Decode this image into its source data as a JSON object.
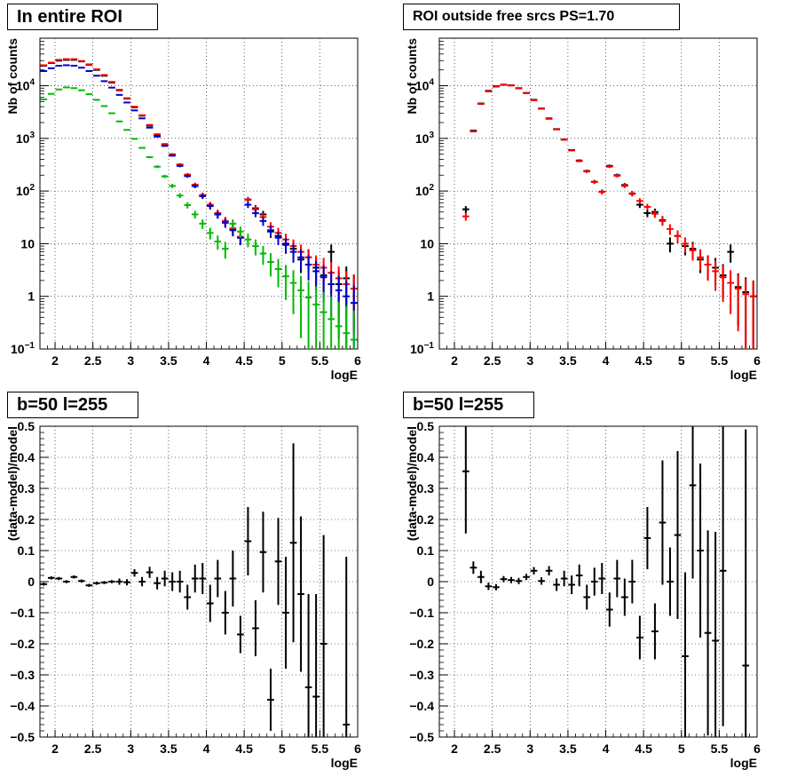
{
  "chart_data": [
    {
      "type": "scatter",
      "title": "In entire ROI",
      "xlabel": "logE",
      "ylabel": "Nb of counts",
      "yscale": "log",
      "xlim": [
        1.8,
        6.0
      ],
      "ylim": [
        0.1,
        80000
      ],
      "xticks": [
        "2",
        "2.5",
        "3",
        "3.5",
        "4",
        "4.5",
        "5",
        "5.5",
        "6"
      ],
      "yticks": [
        "10^-1",
        "1",
        "10",
        "10^2",
        "10^3",
        "10^4"
      ],
      "grid": true,
      "series": [
        {
          "color": "#000000",
          "x": [
            1.85,
            1.95,
            2.05,
            2.15,
            2.25,
            2.35,
            2.45,
            2.55,
            2.65,
            2.75,
            2.85,
            2.95,
            3.05,
            3.15,
            3.25,
            3.35,
            3.45,
            3.55,
            3.65,
            3.75,
            3.85,
            3.95,
            4.05,
            4.15,
            4.25,
            4.35,
            4.45,
            4.55,
            4.65,
            4.75,
            4.85,
            4.95,
            5.05,
            5.15,
            5.25,
            5.35,
            5.45,
            5.55,
            5.65,
            5.75,
            5.85,
            5.95
          ],
          "y": [
            24000,
            27000,
            30000,
            31000,
            31000,
            29000,
            25000,
            20000,
            15500,
            11500,
            8200,
            5700,
            3900,
            2700,
            1750,
            1150,
            760,
            490,
            310,
            200,
            128,
            80,
            52,
            36,
            26,
            19,
            13,
            69,
            47,
            36,
            17,
            14,
            10,
            8,
            5,
            5.5,
            3.5,
            2.5,
            7,
            1.7,
            2.2,
            1.4
          ]
        },
        {
          "color": "#ff0000",
          "x": [
            1.85,
            1.95,
            2.05,
            2.15,
            2.25,
            2.35,
            2.45,
            2.55,
            2.65,
            2.75,
            2.85,
            2.95,
            3.05,
            3.15,
            3.25,
            3.35,
            3.45,
            3.55,
            3.65,
            3.75,
            3.85,
            3.95,
            4.05,
            4.15,
            4.25,
            4.35,
            4.45,
            4.55,
            4.65,
            4.75,
            4.85,
            4.95,
            5.05,
            5.15,
            5.25,
            5.35,
            5.45,
            5.55,
            5.65,
            5.75,
            5.85,
            5.95
          ],
          "y": [
            24500,
            27500,
            31000,
            32000,
            32000,
            29500,
            25500,
            20500,
            16000,
            11800,
            8400,
            5800,
            4000,
            2750,
            1800,
            1200,
            780,
            500,
            320,
            205,
            132,
            84,
            55,
            38,
            27,
            19.5,
            13.5,
            68,
            45,
            32,
            21,
            16,
            12,
            9,
            7,
            5.5,
            4,
            3.5,
            2.8,
            2.2,
            1.7,
            1.4
          ]
        },
        {
          "color": "#0000cc",
          "x": [
            1.85,
            1.95,
            2.05,
            2.15,
            2.25,
            2.35,
            2.45,
            2.55,
            2.65,
            2.75,
            2.85,
            2.95,
            3.05,
            3.15,
            3.25,
            3.35,
            3.45,
            3.55,
            3.65,
            3.75,
            3.85,
            3.95,
            4.05,
            4.15,
            4.25,
            4.35,
            4.45,
            4.55,
            4.65,
            4.75,
            4.85,
            4.95,
            5.05,
            5.15,
            5.25,
            5.35,
            5.45,
            5.55,
            5.65,
            5.75,
            5.85,
            5.95
          ],
          "y": [
            19000,
            21500,
            24000,
            24500,
            24000,
            22000,
            19000,
            15500,
            12200,
            9200,
            6700,
            4800,
            3400,
            2400,
            1600,
            1080,
            720,
            470,
            300,
            192,
            124,
            80,
            52,
            36,
            25,
            18,
            13,
            55,
            38,
            27,
            18,
            13,
            9.5,
            7,
            5.5,
            4,
            3,
            2.3,
            1.7,
            1.3,
            1,
            0.75
          ]
        },
        {
          "color": "#00bb00",
          "x": [
            1.85,
            1.95,
            2.05,
            2.15,
            2.25,
            2.35,
            2.45,
            2.55,
            2.65,
            2.75,
            2.85,
            2.95,
            3.05,
            3.15,
            3.25,
            3.35,
            3.45,
            3.55,
            3.65,
            3.75,
            3.85,
            3.95,
            4.05,
            4.15,
            4.25,
            4.35,
            4.45,
            4.55,
            4.65,
            4.75,
            4.85,
            4.95,
            5.05,
            5.15,
            5.25,
            5.35,
            5.45,
            5.55,
            5.65,
            5.75,
            5.85,
            5.95
          ],
          "y": [
            5500,
            7000,
            8500,
            9300,
            9000,
            8200,
            6900,
            5400,
            4100,
            3000,
            2100,
            1450,
            980,
            660,
            440,
            290,
            190,
            125,
            82,
            54,
            36,
            24,
            16,
            11,
            8,
            24,
            17,
            12,
            9,
            6.5,
            4.5,
            3.3,
            2.4,
            1.8,
            1.3,
            0.95,
            0.7,
            0.5,
            0.37,
            0.27,
            0.2,
            0.15
          ]
        }
      ]
    },
    {
      "type": "scatter",
      "title": "ROI outside free srcs PS=1.70",
      "xlabel": "logE",
      "ylabel": "Nb of counts",
      "yscale": "log",
      "xlim": [
        1.8,
        6.0
      ],
      "ylim": [
        0.1,
        80000
      ],
      "xticks": [
        "2",
        "2.5",
        "3",
        "3.5",
        "4",
        "4.5",
        "5",
        "5.5",
        "6"
      ],
      "yticks": [
        "10^-1",
        "1",
        "10",
        "10^2",
        "10^3",
        "10^4"
      ],
      "grid": true,
      "series": [
        {
          "color": "#000000",
          "x": [
            2.15,
            2.25,
            2.35,
            2.45,
            2.55,
            2.65,
            2.75,
            2.85,
            2.95,
            3.05,
            3.15,
            3.25,
            3.35,
            3.45,
            3.55,
            3.65,
            3.75,
            3.85,
            3.95,
            4.05,
            4.15,
            4.25,
            4.35,
            4.45,
            4.55,
            4.65,
            4.75,
            4.85,
            4.95,
            5.05,
            5.15,
            5.25,
            5.35,
            5.45,
            5.55,
            5.65,
            5.75,
            5.85,
            5.95
          ],
          "y": [
            45,
            1400,
            4600,
            8000,
            9800,
            10500,
            10200,
            9000,
            7300,
            5400,
            3700,
            2400,
            1500,
            950,
            600,
            380,
            240,
            150,
            97,
            300,
            200,
            130,
            90,
            55,
            38,
            40,
            28,
            10,
            14,
            9,
            8,
            5,
            4,
            3.5,
            2.5,
            7,
            1.5,
            1.2,
            1
          ]
        },
        {
          "color": "#ff0000",
          "x": [
            2.15,
            2.25,
            2.35,
            2.45,
            2.55,
            2.65,
            2.75,
            2.85,
            2.95,
            3.05,
            3.15,
            3.25,
            3.35,
            3.45,
            3.55,
            3.65,
            3.75,
            3.85,
            3.95,
            4.05,
            4.15,
            4.25,
            4.35,
            4.45,
            4.55,
            4.65,
            4.75,
            4.85,
            4.95,
            5.05,
            5.15,
            5.25,
            5.35,
            5.45,
            5.55,
            5.65,
            5.75,
            5.85,
            5.95
          ],
          "y": [
            33,
            1350,
            4500,
            7800,
            9600,
            10400,
            10100,
            8900,
            7200,
            5300,
            3650,
            2350,
            1480,
            940,
            590,
            370,
            235,
            148,
            96,
            290,
            195,
            125,
            88,
            65,
            50,
            37,
            27,
            19,
            14,
            10,
            7.5,
            5.5,
            4,
            3,
            2.3,
            1.8,
            1.4,
            1.1,
            1
          ]
        }
      ]
    },
    {
      "type": "scatter",
      "title": "b=50 l=255",
      "xlabel": "logE",
      "ylabel": "(data-model)/model",
      "xlim": [
        1.8,
        6.0
      ],
      "ylim": [
        -0.5,
        0.5
      ],
      "xticks": [
        "2",
        "2.5",
        "3",
        "3.5",
        "4",
        "4.5",
        "5",
        "5.5",
        "6"
      ],
      "yticks": [
        "-0.5",
        "-0.4",
        "-0.3",
        "-0.2",
        "-0.1",
        "0",
        "0.1",
        "0.2",
        "0.3",
        "0.4",
        "0.5"
      ],
      "grid": true,
      "series": [
        {
          "color": "#000000",
          "x": [
            1.85,
            1.95,
            2.05,
            2.15,
            2.25,
            2.35,
            2.45,
            2.55,
            2.65,
            2.75,
            2.85,
            2.95,
            3.05,
            3.15,
            3.25,
            3.35,
            3.45,
            3.55,
            3.65,
            3.75,
            3.85,
            3.95,
            4.05,
            4.15,
            4.25,
            4.35,
            4.45,
            4.55,
            4.65,
            4.75,
            4.85,
            4.95,
            5.05,
            5.15,
            5.25,
            5.35,
            5.45,
            5.55,
            5.85
          ],
          "y": [
            -0.008,
            0.012,
            0.01,
            0.0,
            0.015,
            0.002,
            -0.012,
            -0.005,
            -0.003,
            0.0,
            0.0,
            -0.002,
            0.028,
            0.0,
            0.03,
            -0.005,
            0.01,
            0.0,
            0.0,
            -0.05,
            0.01,
            0.01,
            -0.07,
            0.01,
            -0.1,
            0.01,
            -0.17,
            0.13,
            -0.15,
            0.095,
            -0.38,
            0.065,
            -0.1,
            0.125,
            -0.04,
            -0.34,
            -0.37,
            -0.2,
            -0.46
          ],
          "err": [
            0.005,
            0.005,
            0.005,
            0.005,
            0.005,
            0.005,
            0.005,
            0.005,
            0.005,
            0.005,
            0.01,
            0.01,
            0.012,
            0.015,
            0.018,
            0.02,
            0.025,
            0.03,
            0.035,
            0.04,
            0.045,
            0.05,
            0.06,
            0.06,
            0.07,
            0.09,
            0.06,
            0.11,
            0.09,
            0.13,
            0.1,
            0.14,
            0.18,
            0.32,
            0.25,
            0.3,
            0.33,
            0.35,
            0.54
          ]
        }
      ]
    },
    {
      "type": "scatter",
      "title": "b=50 l=255",
      "xlabel": "logE",
      "ylabel": "(data-model)/model",
      "xlim": [
        1.8,
        6.0
      ],
      "ylim": [
        -0.5,
        0.5
      ],
      "xticks": [
        "2",
        "2.5",
        "3",
        "3.5",
        "4",
        "4.5",
        "5",
        "5.5",
        "6"
      ],
      "yticks": [
        "-0.5",
        "-0.4",
        "-0.3",
        "-0.2",
        "-0.1",
        "0",
        "0.1",
        "0.2",
        "0.3",
        "0.4",
        "0.5"
      ],
      "grid": true,
      "series": [
        {
          "color": "#000000",
          "x": [
            2.15,
            2.25,
            2.35,
            2.45,
            2.55,
            2.65,
            2.75,
            2.85,
            2.95,
            3.05,
            3.15,
            3.25,
            3.35,
            3.45,
            3.55,
            3.65,
            3.75,
            3.85,
            3.95,
            4.05,
            4.15,
            4.25,
            4.35,
            4.45,
            4.55,
            4.65,
            4.75,
            4.85,
            4.95,
            5.05,
            5.15,
            5.25,
            5.35,
            5.45,
            5.55,
            5.85
          ],
          "y": [
            0.355,
            0.045,
            0.015,
            -0.015,
            -0.018,
            0.008,
            0.005,
            0.002,
            0.015,
            0.035,
            0.002,
            0.035,
            -0.01,
            0.01,
            -0.01,
            0.02,
            -0.05,
            0.0,
            0.01,
            -0.09,
            0.01,
            -0.05,
            0.0,
            -0.18,
            0.14,
            -0.16,
            0.19,
            0.0,
            0.15,
            -0.24,
            0.31,
            0.1,
            -0.165,
            -0.19,
            0.035,
            -0.27
          ],
          "err": [
            0.2,
            0.02,
            0.02,
            0.012,
            0.01,
            0.01,
            0.01,
            0.01,
            0.01,
            0.012,
            0.012,
            0.015,
            0.02,
            0.025,
            0.03,
            0.035,
            0.04,
            0.045,
            0.05,
            0.055,
            0.06,
            0.06,
            0.07,
            0.07,
            0.1,
            0.09,
            0.2,
            0.11,
            0.27,
            0.27,
            0.3,
            0.28,
            0.33,
            0.35,
            0.5,
            0.76
          ]
        }
      ]
    }
  ]
}
